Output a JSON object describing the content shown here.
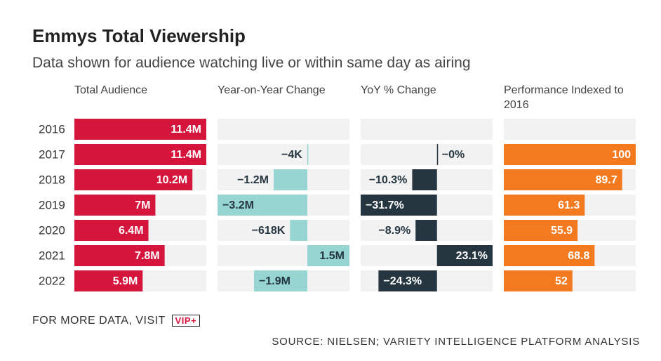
{
  "title": "Emmys Total Viewership",
  "subtitle": "Data shown for audience watching live or within same day as airing",
  "footer": "FOR MORE DATA, VISIT",
  "logo": "VIP+",
  "source": "SOURCE: NIELSEN; VARIETY INTELLIGENCE PLATFORM ANALYSIS",
  "chart_data": [
    {
      "type": "bar",
      "title": "Total Audience",
      "color": "#d6153c",
      "categories": [
        "2016",
        "2017",
        "2018",
        "2019",
        "2020",
        "2021",
        "2022"
      ],
      "values": [
        11.4,
        11.4,
        10.2,
        7,
        6.4,
        7.8,
        5.9
      ],
      "value_labels": [
        "11.4M",
        "11.4M",
        "10.2M",
        "7M",
        "6.4M",
        "7.8M",
        "5.9M"
      ],
      "xlim": [
        0,
        11.4
      ]
    },
    {
      "type": "bar",
      "title": "Year-on-Year Change",
      "color": "#96d5d2",
      "values": [
        null,
        -0.004,
        -1.2,
        -3.2,
        -0.618,
        1.5,
        -1.9
      ],
      "value_labels": [
        null,
        "−4K",
        "−1.2M",
        "−3.2M",
        "−618K",
        "1.5M",
        "−1.9M"
      ],
      "xlim": [
        -3.2,
        1.5
      ]
    },
    {
      "type": "bar",
      "title": "YoY % Change",
      "color": "#253640",
      "values": [
        null,
        0,
        -10.3,
        -31.7,
        -8.9,
        23.1,
        -24.3
      ],
      "value_labels": [
        null,
        "−0%",
        "−10.3%",
        "−31.7%",
        "−8.9%",
        "23.1%",
        "−24.3%"
      ],
      "xlim": [
        -31.7,
        23.1
      ]
    },
    {
      "type": "bar",
      "title": "Performance Indexed to 2016",
      "color": "#f47a20",
      "values": [
        null,
        100,
        89.7,
        61.3,
        55.9,
        68.8,
        52
      ],
      "xlim": [
        0,
        100
      ]
    }
  ]
}
